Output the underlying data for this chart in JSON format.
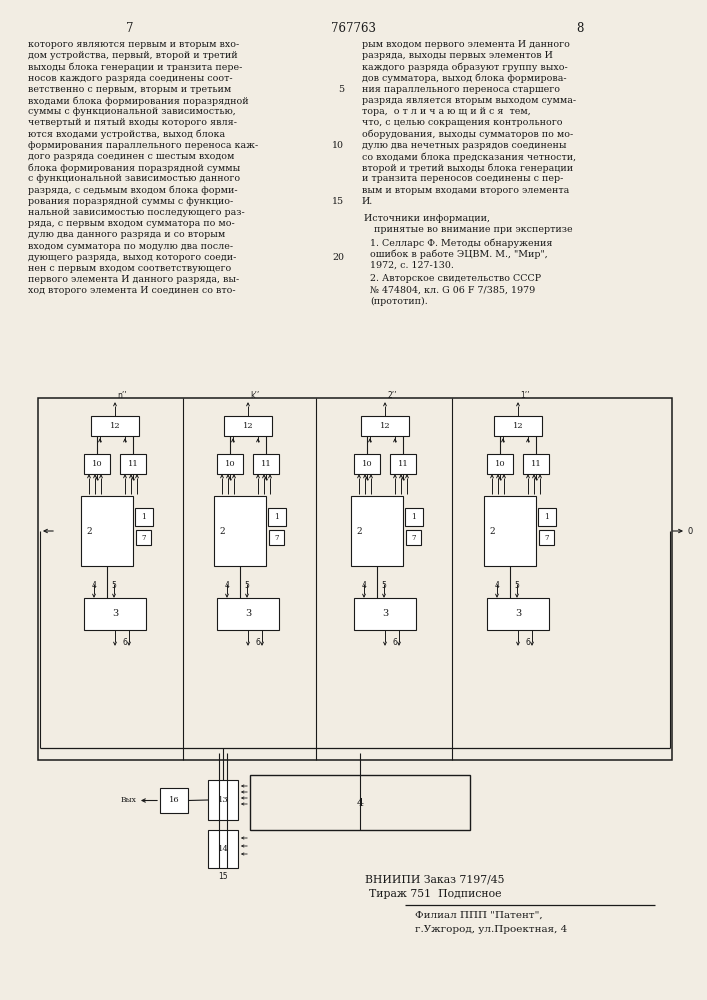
{
  "page_number_left": "7",
  "page_number_center": "767763",
  "page_number_right": "8",
  "col_left_lines": [
    "которого являются первым и вторым вхо-",
    "дом устройства, первый, второй и третий",
    "выходы блока генерации и транзита пере-",
    "носов каждого разряда соединены соот-",
    "ветственно с первым, вторым и третьим",
    "входами блока формирования поразрядной",
    "суммы с функциональной зависимостью,",
    "четвертый и пятый входы которого явля-",
    "ются входами устройства, выход блока",
    "формирования параллельного переноса каж-",
    "дого разряда соединен с шестым входом",
    "блока формирования поразрядной суммы",
    "с функциональной зависимостью данного",
    "разряда, с седьмым входом блока форми-",
    "рования поразрядной суммы с функцио-",
    "нальной зависимостью последующего раз-",
    "ряда, с первым входом сумматора по мо-",
    "дулю два данного разряда и со вторым",
    "входом сумматора по модулю два после-",
    "дующего разряда, выход которого соеди-",
    "нен с первым входом соответствующего",
    "первого элемента И данного разряда, вы-",
    "ход второго элемента И соединен со вто-"
  ],
  "col_right_lines": [
    "рым входом первого элемента И данного",
    "разряда, выходы первых элементов И",
    "каждого разряда образуют группу выхо-",
    "дов сумматора, выход блока формирова-",
    "ния параллельного переноса старшего",
    "разряда является вторым выходом сумма-",
    "тора,  о т л и ч а ю щ и й с я  тем,",
    "что, с целью сокращения контрольного",
    "оборудования, выходы сумматоров по мо-",
    "дулю два нечетных разрядов соединены",
    "со входами блока предсказания четности,",
    "второй и третий выходы блока генерации",
    "и транзита переносов соединены с пер-",
    "вым и вторым входами второго элемента",
    "И."
  ],
  "sources_header": "Источники информации,",
  "sources_subheader": "принятые во внимание при экспертизе",
  "source1": "1. Селларс Ф. Методы обнаружения",
  "source1b": "ошибок в работе ЭЦВМ. М., \"Мир\",",
  "source1c": "1972, с. 127-130.",
  "source2": "2. Авторское свидетельство СССР",
  "source2b": "№ 474804, кл. G 06 F 7/385, 1979",
  "source2c": "(прототип).",
  "footer1": "ВНИИПИ Заказ 7197/45",
  "footer2": "Тираж 751  Подписное",
  "footer3": "Филиал ППП \"Патент\",",
  "footer4": "г.Ужгород, ул.Проектная, 4",
  "bg_color": "#f2ede3",
  "text_color": "#1a1a1a"
}
